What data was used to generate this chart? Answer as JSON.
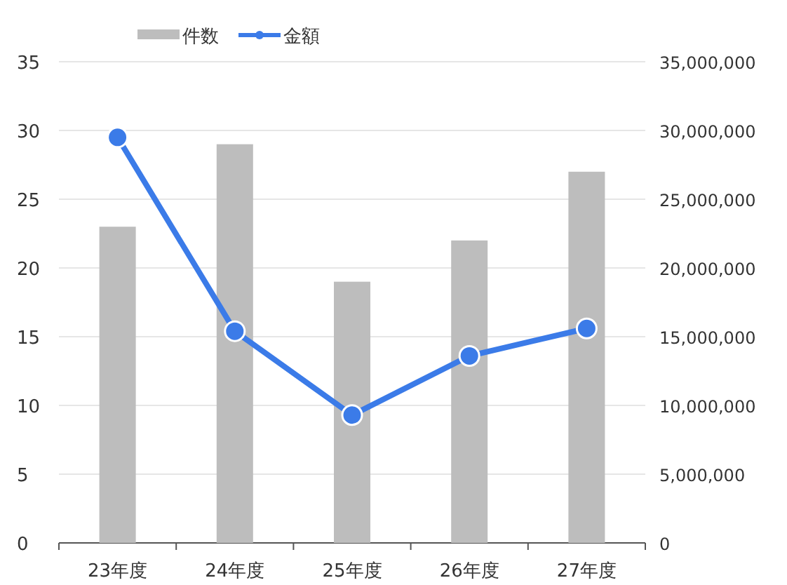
{
  "chart_data": {
    "type": "bar",
    "categories": [
      "23年度",
      "24年度",
      "25年度",
      "26年度",
      "27年度"
    ],
    "series": [
      {
        "name": "件数",
        "color": "#bdbdbd",
        "values": [
          23,
          29,
          19,
          22,
          27
        ]
      },
      {
        "name": "金額",
        "type": "line",
        "axis": "y2",
        "color": "#3b7be8",
        "marker": "circle",
        "values": [
          29500000,
          15400000,
          9300000,
          13600000,
          15600000
        ]
      }
    ],
    "ylim": [
      0,
      35
    ],
    "yticks": [
      0,
      5,
      10,
      15,
      20,
      25,
      30,
      35
    ],
    "y2lim": [
      0,
      35000000
    ],
    "y2ticks": [
      {
        "value": 0,
        "label": "0"
      },
      {
        "value": 5000000,
        "label": "5,000,000"
      },
      {
        "value": 10000000,
        "label": "10,000,000"
      },
      {
        "value": 15000000,
        "label": "15,000,000"
      },
      {
        "value": 20000000,
        "label": "20,000,000"
      },
      {
        "value": 25000000,
        "label": "25,000,000"
      },
      {
        "value": 30000000,
        "label": "30,000,000"
      },
      {
        "value": 35000000,
        "label": "35,000,000"
      }
    ],
    "grid": "y",
    "legend": "top"
  }
}
